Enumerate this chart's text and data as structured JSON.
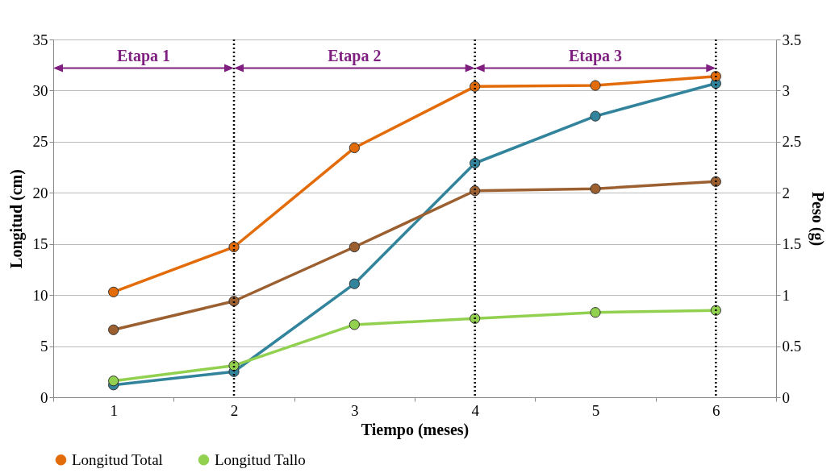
{
  "chart_data": {
    "type": "line",
    "xlabel": "Tiempo (meses)",
    "ylabel": "Longitud (cm)",
    "y2label": "Peso (g)",
    "categories": [
      "1",
      "2",
      "3",
      "4",
      "5",
      "6"
    ],
    "series": [
      {
        "name": "Longitud Total",
        "color": "#e36c0a",
        "values": [
          10.3,
          14.7,
          24.4,
          30.4,
          30.5,
          31.4
        ]
      },
      {
        "color": "#9b5f30",
        "values": [
          6.6,
          9.4,
          14.7,
          20.2,
          20.4,
          21.1
        ]
      },
      {
        "name": "Longitud Tallo",
        "color": "#92d050",
        "values": [
          1.6,
          3.1,
          7.1,
          7.7,
          8.3,
          8.5
        ]
      },
      {
        "color": "#31849b",
        "axis": "y2",
        "values": [
          0.12,
          0.25,
          1.11,
          2.29,
          2.75,
          3.07
        ]
      }
    ],
    "ylim": [
      0,
      35
    ],
    "yticks": [
      0,
      5,
      10,
      15,
      20,
      25,
      30,
      35
    ],
    "y2lim": [
      0,
      3.5
    ],
    "y2ticks": [
      0,
      0.5,
      1,
      1.5,
      2,
      2.5,
      3,
      3.5
    ],
    "ref_lines": [
      {
        "axis": "x",
        "value": "2",
        "color": "#000000",
        "line_style": "dotted"
      },
      {
        "axis": "x",
        "value": "4",
        "color": "#000000",
        "line_style": "dotted"
      },
      {
        "axis": "x",
        "value": "6",
        "color": "#000000",
        "line_style": "dotted"
      }
    ],
    "annotations": [
      "Etapa 1",
      "Etapa 2",
      "Etapa 3"
    ],
    "grid": "y",
    "legend": "bottom",
    "marker": "circle",
    "line_style": "solid"
  }
}
